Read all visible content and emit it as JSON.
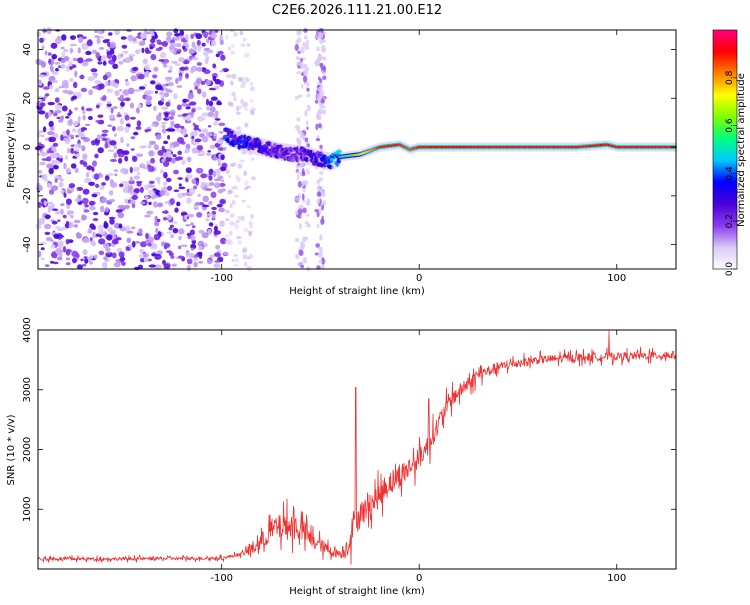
{
  "title": "C2E6.2026.111.21.00.E12",
  "chart_data": [
    {
      "id": "spectrogram",
      "type": "heatmap",
      "xlabel": "Height of straight line (km)",
      "ylabel": "Frequency (Hz)",
      "xlim": [
        -193,
        130
      ],
      "ylim": [
        -50,
        48
      ],
      "xticks": [
        -100,
        0,
        100
      ],
      "xtick_labels": [
        "-100",
        "0",
        "100"
      ],
      "yticks": [
        -40,
        -20,
        0,
        20,
        40
      ],
      "ytick_labels": [
        "-40",
        "-20",
        "0",
        "20",
        "40"
      ],
      "colorbar": {
        "label": "Normalized spectral amplitude",
        "range": [
          0.0,
          1.0
        ],
        "ticks": [
          0.0,
          0.2,
          0.4,
          0.6,
          0.8
        ],
        "tick_labels": [
          "0.0",
          "0.2",
          "0.4",
          "0.6",
          "0.8"
        ],
        "colors": [
          "#ffffff",
          "#d9c8f5",
          "#8a3cf0",
          "#4b00d8",
          "#0000ff",
          "#00c8ff",
          "#00ff80",
          "#80ff00",
          "#ffff00",
          "#ff8000",
          "#ff0000",
          "#ff0080"
        ]
      },
      "noise_region": {
        "x": [
          -193,
          -98
        ],
        "y": [
          -50,
          48
        ],
        "level": 0.2
      },
      "noise_bands": [
        {
          "x": [
            -62,
            -56
          ]
        },
        {
          "x": [
            -52,
            -48
          ]
        }
      ],
      "signal_track": {
        "x": [
          -98,
          -90,
          -80,
          -70,
          -60,
          -50,
          -45,
          -40,
          -30,
          -20,
          -10,
          -5,
          0,
          20,
          50,
          80,
          95,
          100,
          130
        ],
        "freq": [
          5,
          2,
          0,
          -2,
          -3,
          -5,
          -6,
          -4,
          -3,
          0,
          1,
          -1,
          0,
          0,
          0,
          0,
          1,
          0,
          0
        ],
        "amplitude": [
          0.35,
          0.35,
          0.3,
          0.25,
          0.25,
          0.3,
          0.4,
          0.5,
          0.7,
          0.9,
          0.9,
          0.85,
          0.9,
          0.92,
          0.95,
          0.95,
          0.9,
          0.95,
          0.95
        ]
      }
    },
    {
      "id": "snr",
      "type": "line",
      "xlabel": "Height of straight line (km)",
      "ylabel": "SNR (10 * v/v)",
      "xlim": [
        -193,
        130
      ],
      "ylim": [
        0,
        4000
      ],
      "xticks": [
        -100,
        0,
        100
      ],
      "xtick_labels": [
        "-100",
        "0",
        "100"
      ],
      "yticks": [
        1000,
        2000,
        3000,
        4000
      ],
      "ytick_labels": [
        "1000",
        "2000",
        "3000",
        "4000"
      ],
      "color": "#ee3333",
      "series": [
        {
          "name": "SNR",
          "x": [
            -193,
            -150,
            -110,
            -100,
            -90,
            -85,
            -80,
            -75,
            -70,
            -65,
            -60,
            -55,
            -50,
            -45,
            -40,
            -37,
            -35,
            -33,
            -30,
            -25,
            -20,
            -15,
            -10,
            -5,
            0,
            5,
            10,
            15,
            20,
            25,
            30,
            40,
            50,
            60,
            80,
            100,
            130
          ],
          "y": [
            170,
            170,
            180,
            180,
            250,
            330,
            450,
            650,
            700,
            720,
            680,
            500,
            400,
            300,
            250,
            330,
            520,
            780,
            900,
            1080,
            1230,
            1450,
            1550,
            1700,
            1850,
            2100,
            2450,
            2800,
            2960,
            3100,
            3250,
            3380,
            3450,
            3500,
            3540,
            3560,
            3580
          ],
          "noise": [
            60,
            60,
            60,
            60,
            60,
            250,
            320,
            420,
            480,
            500,
            480,
            300,
            250,
            200,
            150,
            350,
            500,
            550,
            500,
            450,
            450,
            450,
            450,
            400,
            380,
            380,
            350,
            320,
            280,
            250,
            220,
            180,
            160,
            150,
            150,
            150,
            150
          ]
        }
      ],
      "spikes": [
        {
          "x": -32,
          "y": 3040
        },
        {
          "x": -8,
          "y": 2650
        },
        {
          "x": 5,
          "y": 2850
        },
        {
          "x": 96,
          "y": 4000
        }
      ]
    }
  ]
}
